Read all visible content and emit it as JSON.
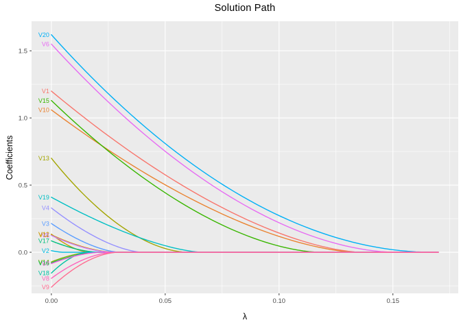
{
  "title": "Solution Path",
  "colors": {
    "background": "#FFFFFF",
    "panel_bg": "#EBEBEB",
    "grid": "#FFFFFF",
    "tick_mark": "#333333",
    "tick_label": "#4D4D4D",
    "text": "#000000"
  },
  "chart_data": {
    "type": "line",
    "title": "Solution Path",
    "xlabel": "λ",
    "ylabel": "Coefficients",
    "legend": "none",
    "grid": true,
    "xlim": [
      -0.0087,
      0.1787
    ],
    "ylim": [
      -0.306,
      1.72
    ],
    "x_major_ticks": [
      0,
      0.05,
      0.1,
      0.15
    ],
    "x_tick_labels": [
      "0.00",
      "0.05",
      "0.10",
      "0.15"
    ],
    "x_minor_ticks": [
      0.025,
      0.075,
      0.125,
      0.175
    ],
    "y_major_ticks": [
      0,
      0.5,
      1.0,
      1.5
    ],
    "y_tick_labels": [
      "0.0",
      "0.5",
      "1.0",
      "1.5"
    ],
    "y_minor_ticks": [
      -0.25,
      0.25,
      0.75,
      1.25
    ],
    "lambda_max": 0.17,
    "series_note": "each series starts at coefficient 'start' at lambda=0, decays to 0 at lambda='zero_at', then stays 0 until lambda_max",
    "series": [
      {
        "name": "V1",
        "color": "#F8766D",
        "start": 1.2,
        "zero_at": 0.136,
        "curve": 1.6
      },
      {
        "name": "V10",
        "color": "#EA8331",
        "start": 1.06,
        "zero_at": 0.134,
        "curve": 1.6
      },
      {
        "name": "V11",
        "color": "#D89000",
        "start": 0.13,
        "zero_at": 0.028,
        "curve": 1.7
      },
      {
        "name": "V12",
        "color": "#C49A00",
        "start": 0.135,
        "zero_at": 0.017,
        "curve": 1.7
      },
      {
        "name": "V13",
        "color": "#A3A500",
        "start": 0.7,
        "zero_at": 0.06,
        "curve": 1.8
      },
      {
        "name": "V14",
        "color": "#7CAE00",
        "start": -0.072,
        "zero_at": 0.018,
        "curve": 1.7
      },
      {
        "name": "V15",
        "color": "#39B600",
        "start": 1.13,
        "zero_at": 0.118,
        "curve": 1.7
      },
      {
        "name": "V16",
        "color": "#00BB4E",
        "start": -0.08,
        "zero_at": 0.021,
        "curve": 1.7
      },
      {
        "name": "V17",
        "color": "#00BF7D",
        "start": 0.085,
        "zero_at": 0.021,
        "curve": 1.7
      },
      {
        "name": "V18",
        "color": "#00C1A3",
        "start": -0.155,
        "zero_at": 0.016,
        "curve": 1.7
      },
      {
        "name": "V19",
        "color": "#00BFC4",
        "start": 0.41,
        "zero_at": 0.066,
        "curve": 1.5
      },
      {
        "name": "V2",
        "color": "#00BAE0",
        "start": 0.012,
        "zero_at": 0.005,
        "curve": 1.5
      },
      {
        "name": "V20",
        "color": "#00B0F6",
        "start": 1.62,
        "zero_at": 0.167,
        "curve": 1.95
      },
      {
        "name": "V3",
        "color": "#5A9DFF",
        "start": 0.214,
        "zero_at": 0.03,
        "curve": 1.6
      },
      {
        "name": "V4",
        "color": "#9590FF",
        "start": 0.33,
        "zero_at": 0.04,
        "curve": 1.6
      },
      {
        "name": "V5",
        "color": "#C77CFF",
        "start": 0.125,
        "zero_at": 0.027,
        "curve": 1.7
      },
      {
        "name": "V6",
        "color": "#E76BF3",
        "start": 1.55,
        "zero_at": 0.151,
        "curve": 1.8
      },
      {
        "name": "V7",
        "color": "#F962DD",
        "start": -0.085,
        "zero_at": 0.022,
        "curve": 1.7
      },
      {
        "name": "V8",
        "color": "#FF62BC",
        "start": -0.194,
        "zero_at": 0.028,
        "curve": 1.8
      },
      {
        "name": "V9",
        "color": "#FF6C91",
        "start": -0.26,
        "zero_at": 0.0295,
        "curve": 1.8
      }
    ]
  }
}
